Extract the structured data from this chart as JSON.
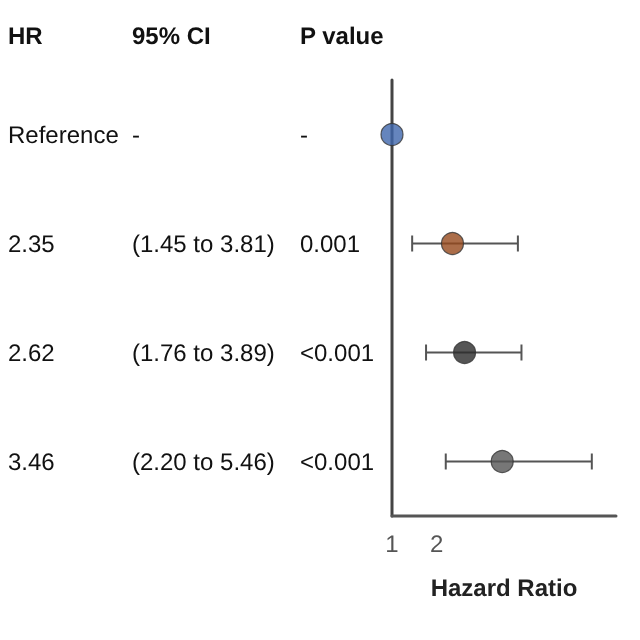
{
  "chart_data": {
    "type": "scatter",
    "orientation": "horizontal",
    "xlabel": "Hazard Ratio",
    "categories": [
      null,
      null,
      null,
      null
    ],
    "values": [
      1,
      2.35,
      2.62,
      3.46
    ],
    "colors": [
      "#3f66ad",
      "#96491b",
      "#2b2b2b",
      "#555555"
    ],
    "errors": [
      null,
      [
        1.45,
        3.81
      ],
      [
        1.76,
        3.89
      ],
      [
        2.2,
        5.46
      ]
    ],
    "xlim": [
      1,
      6
    ],
    "xticks": [
      1,
      2
    ],
    "marker": "circle",
    "grid": false,
    "annotations": [
      "HR",
      "95% CI",
      "P value",
      "Reference",
      "-",
      "-",
      "2.35",
      "(1.45 to 3.81)",
      "0.001",
      "2.62",
      "(1.76 to 3.89)",
      "<0.001",
      "3.46",
      "(2.20 to 5.46)",
      "<0.001"
    ]
  }
}
